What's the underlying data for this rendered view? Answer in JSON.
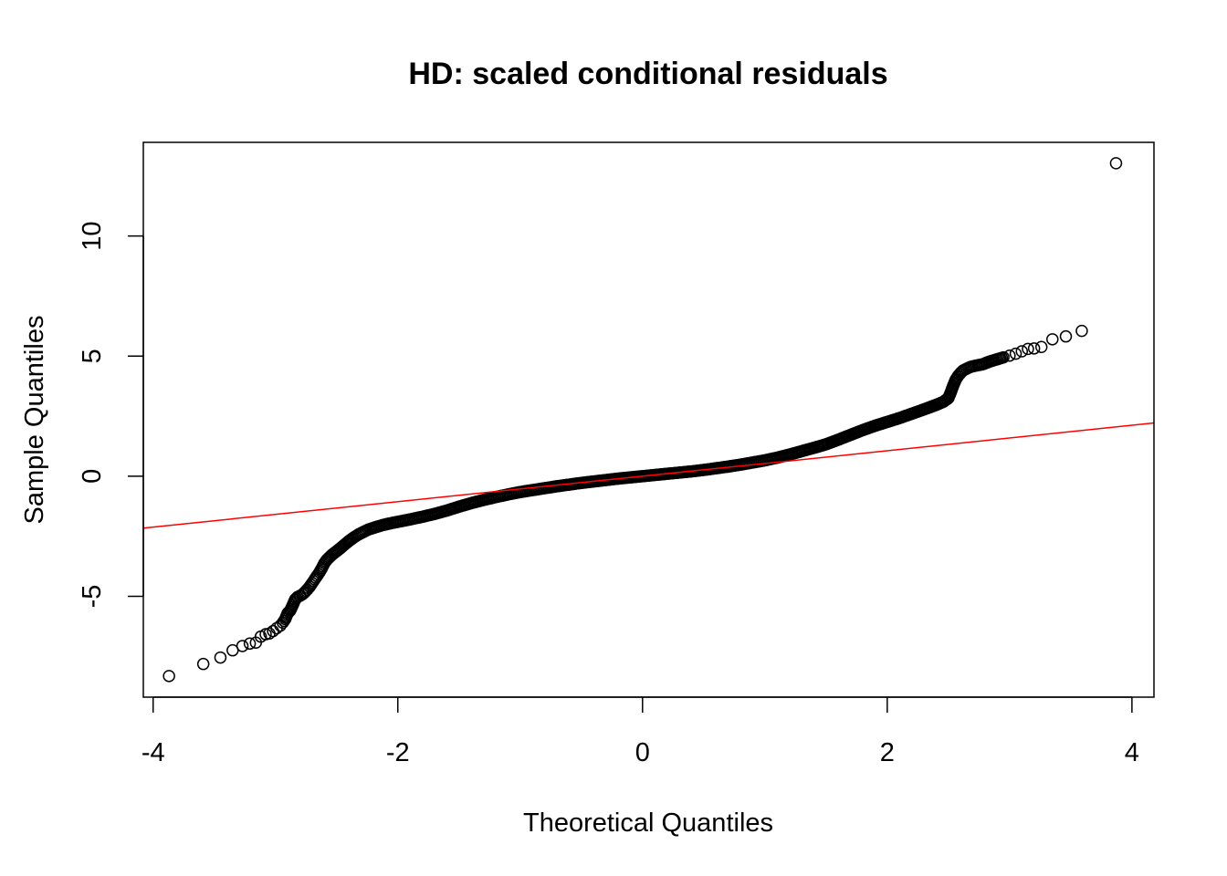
{
  "chart_data": {
    "type": "scatter",
    "title": "HD: scaled conditional residuals",
    "xlabel": "Theoretical Quantiles",
    "ylabel": "Sample Quantiles",
    "xlim": [
      -4.08,
      4.18
    ],
    "ylim": [
      -9.2,
      13.9
    ],
    "x_ticks": [
      -4,
      -2,
      0,
      2,
      4
    ],
    "x_tick_labels": [
      "-4",
      "-2",
      "0",
      "2",
      "4"
    ],
    "y_ticks": [
      -5,
      0,
      5,
      10
    ],
    "y_tick_labels": [
      "-5",
      "0",
      "5",
      "10"
    ],
    "grid": false,
    "legend": "none",
    "colors": {
      "points": "#000000",
      "reference_line": "#ff0000",
      "frame": "#000000",
      "background": "#ffffff"
    },
    "reference_line": {
      "intercept": 0,
      "slope": 0.53
    },
    "series": [
      {
        "marker": "open-circle",
        "points": [
          [
            -3.87,
            -8.32
          ],
          [
            -3.59,
            -7.82
          ],
          [
            -3.45,
            -7.55
          ],
          [
            -3.35,
            -7.25
          ],
          [
            -3.27,
            -7.07
          ],
          [
            -3.21,
            -6.97
          ],
          [
            -3.16,
            -6.93
          ],
          [
            -3.12,
            -6.68
          ],
          [
            -3.08,
            -6.58
          ],
          [
            -3.05,
            -6.55
          ],
          [
            -3.02,
            -6.45
          ],
          [
            -2.99,
            -6.33
          ],
          [
            -2.96,
            -6.22
          ],
          [
            -2.94,
            -6.1
          ],
          [
            -2.92,
            -5.95
          ],
          [
            -2.9,
            -5.7
          ],
          [
            -2.88,
            -5.6
          ],
          [
            -2.86,
            -5.38
          ],
          [
            -2.84,
            -5.14
          ],
          [
            -2.82,
            -5.03
          ],
          [
            -2.8,
            -4.98
          ],
          [
            -2.78,
            -4.92
          ],
          [
            -2.76,
            -4.83
          ],
          [
            -2.74,
            -4.72
          ],
          [
            -2.72,
            -4.6
          ],
          [
            -2.7,
            -4.45
          ],
          [
            -2.68,
            -4.3
          ],
          [
            -2.66,
            -4.15
          ],
          [
            -2.64,
            -4.0
          ],
          [
            -2.62,
            -3.82
          ],
          [
            -2.6,
            -3.62
          ],
          [
            -2.58,
            -3.48
          ],
          [
            -2.56,
            -3.38
          ],
          [
            -2.54,
            -3.28
          ],
          [
            -2.52,
            -3.2
          ],
          [
            -2.5,
            -3.12
          ],
          [
            -2.47,
            -3.0
          ],
          [
            -2.44,
            -2.87
          ],
          [
            -2.4,
            -2.7
          ],
          [
            -2.36,
            -2.55
          ],
          [
            -2.32,
            -2.42
          ],
          [
            -2.28,
            -2.32
          ],
          [
            -2.24,
            -2.22
          ],
          [
            -2.18,
            -2.12
          ],
          [
            -2.12,
            -2.03
          ],
          [
            -2.06,
            -1.96
          ],
          [
            -2.0,
            -1.9
          ],
          [
            -1.9,
            -1.8
          ],
          [
            -1.8,
            -1.69
          ],
          [
            -1.7,
            -1.57
          ],
          [
            -1.6,
            -1.43
          ],
          [
            -1.5,
            -1.27
          ],
          [
            -1.4,
            -1.12
          ],
          [
            -1.3,
            -0.99
          ],
          [
            -1.2,
            -0.87
          ],
          [
            -1.1,
            -0.76
          ],
          [
            -1.0,
            -0.66
          ],
          [
            -0.9,
            -0.58
          ],
          [
            -0.8,
            -0.5
          ],
          [
            -0.7,
            -0.42
          ],
          [
            -0.6,
            -0.35
          ],
          [
            -0.5,
            -0.28
          ],
          [
            -0.4,
            -0.22
          ],
          [
            -0.3,
            -0.16
          ],
          [
            -0.2,
            -0.1
          ],
          [
            -0.1,
            -0.05
          ],
          [
            0.0,
            0.0
          ],
          [
            0.1,
            0.05
          ],
          [
            0.2,
            0.1
          ],
          [
            0.3,
            0.15
          ],
          [
            0.4,
            0.2
          ],
          [
            0.5,
            0.26
          ],
          [
            0.6,
            0.33
          ],
          [
            0.7,
            0.4
          ],
          [
            0.8,
            0.48
          ],
          [
            0.9,
            0.57
          ],
          [
            1.0,
            0.66
          ],
          [
            1.1,
            0.77
          ],
          [
            1.2,
            0.9
          ],
          [
            1.3,
            1.04
          ],
          [
            1.4,
            1.18
          ],
          [
            1.5,
            1.33
          ],
          [
            1.6,
            1.52
          ],
          [
            1.7,
            1.72
          ],
          [
            1.8,
            1.92
          ],
          [
            1.9,
            2.1
          ],
          [
            2.0,
            2.26
          ],
          [
            2.1,
            2.42
          ],
          [
            2.2,
            2.6
          ],
          [
            2.3,
            2.78
          ],
          [
            2.4,
            2.97
          ],
          [
            2.46,
            3.1
          ],
          [
            2.5,
            3.25
          ],
          [
            2.52,
            3.5
          ],
          [
            2.54,
            3.78
          ],
          [
            2.56,
            4.02
          ],
          [
            2.58,
            4.18
          ],
          [
            2.6,
            4.3
          ],
          [
            2.62,
            4.4
          ],
          [
            2.65,
            4.48
          ],
          [
            2.68,
            4.55
          ],
          [
            2.72,
            4.6
          ],
          [
            2.78,
            4.66
          ],
          [
            2.84,
            4.78
          ],
          [
            2.9,
            4.87
          ],
          [
            2.95,
            4.95
          ],
          [
            3.0,
            5.02
          ],
          [
            3.05,
            5.1
          ],
          [
            3.1,
            5.2
          ],
          [
            3.15,
            5.3
          ],
          [
            3.2,
            5.32
          ],
          [
            3.26,
            5.38
          ],
          [
            3.35,
            5.7
          ],
          [
            3.46,
            5.82
          ],
          [
            3.59,
            6.05
          ],
          [
            3.87,
            13.03
          ]
        ]
      }
    ]
  }
}
